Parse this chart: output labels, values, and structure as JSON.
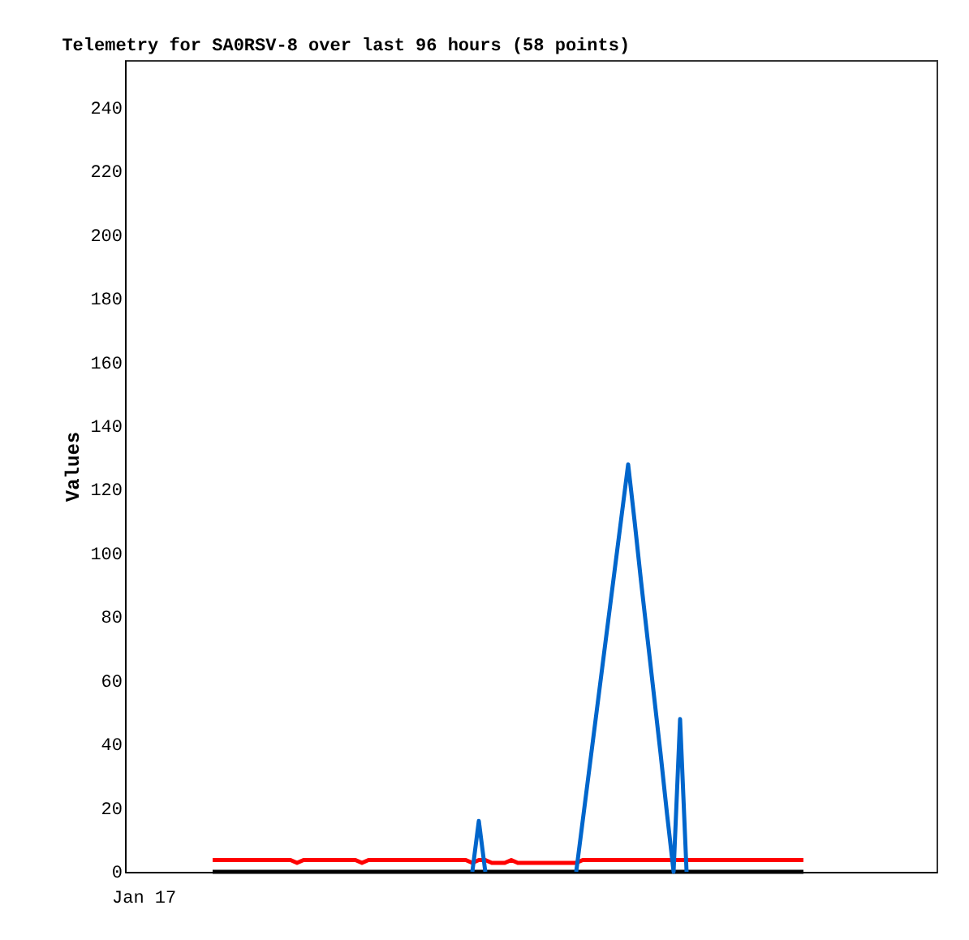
{
  "chart_data": {
    "type": "line",
    "title": "Telemetry for SA0RSV-8 over last 96 hours (58 points)",
    "ylabel": "Values",
    "annotations": [
      "Jan 17"
    ],
    "categories": [
      null,
      null,
      null,
      null,
      null,
      null,
      null,
      null,
      null,
      null,
      null,
      null,
      null,
      null,
      null,
      null,
      null,
      null,
      null,
      null,
      null,
      null,
      null,
      null,
      null,
      null,
      null,
      null,
      null,
      null,
      null,
      null,
      null,
      null,
      null,
      null,
      null,
      null,
      null,
      null,
      null,
      null,
      null,
      null,
      null,
      null,
      null,
      null,
      null,
      null,
      null,
      null,
      null,
      null,
      null,
      null,
      null,
      null,
      null,
      null,
      null,
      null,
      null,
      null,
      null,
      null,
      null,
      null,
      null,
      null,
      null,
      null,
      null,
      null,
      null,
      null,
      null,
      null,
      null,
      null,
      null,
      null,
      null,
      null,
      null,
      null,
      null,
      null,
      null,
      null,
      null,
      null,
      null,
      null,
      null,
      null,
      null,
      null,
      null,
      null,
      null,
      null,
      null,
      null,
      null,
      null,
      null,
      null,
      null,
      null,
      null,
      null,
      null,
      null,
      null,
      null,
      null,
      null,
      null,
      null,
      null,
      null,
      null,
      null,
      null
    ],
    "ylim": [
      0,
      255
    ],
    "yticks": [
      0,
      20,
      40,
      60,
      80,
      100,
      120,
      140,
      160,
      180,
      200,
      220,
      240
    ],
    "line_style": "solid",
    "series": [
      {
        "color": "#ff0000",
        "values": [
          null,
          null,
          null,
          null,
          null,
          null,
          null,
          null,
          null,
          null,
          null,
          null,
          null,
          3.7,
          3.7,
          3.7,
          3.7,
          3.7,
          3.7,
          3.7,
          3.7,
          3.7,
          3.7,
          3.7,
          3.7,
          3.7,
          2.8,
          3.7,
          3.7,
          3.7,
          3.7,
          3.7,
          3.7,
          3.7,
          3.7,
          3.7,
          2.8,
          3.7,
          3.7,
          3.7,
          3.7,
          3.7,
          3.7,
          3.7,
          3.7,
          3.7,
          3.7,
          3.7,
          3.7,
          3.7,
          3.7,
          3.7,
          3.7,
          2.8,
          3.7,
          3.7,
          2.8,
          2.8,
          2.8,
          3.7,
          2.8,
          2.8,
          2.8,
          2.8,
          2.8,
          2.8,
          2.8,
          2.8,
          2.8,
          2.8,
          3.7,
          3.7,
          3.7,
          3.7,
          3.7,
          3.7,
          3.7,
          3.7,
          3.7,
          3.7,
          3.7,
          3.7,
          3.7,
          3.7,
          3.7,
          3.7,
          3.7,
          3.7,
          3.7,
          3.7,
          3.7,
          3.7,
          3.7,
          3.7,
          3.7,
          3.7,
          3.7,
          3.7,
          3.7,
          3.7,
          3.7,
          3.7,
          3.7,
          3.7,
          3.7,
          null,
          null,
          null,
          null,
          null,
          null,
          null,
          null,
          null,
          null,
          null,
          null,
          null,
          null,
          null,
          null,
          null,
          null,
          null,
          null
        ]
      },
      {
        "color": "#000000",
        "values": [
          null,
          null,
          null,
          null,
          null,
          null,
          null,
          null,
          null,
          null,
          null,
          null,
          null,
          0,
          0,
          0,
          0,
          0,
          0,
          0,
          0,
          0,
          0,
          0,
          0,
          0,
          0,
          0,
          0,
          0,
          0,
          0,
          0,
          0,
          0,
          0,
          0,
          0,
          0,
          0,
          0,
          0,
          0,
          0,
          0,
          0,
          0,
          0,
          0,
          0,
          0,
          0,
          0,
          0,
          0,
          0,
          0,
          0,
          0,
          0,
          0,
          0,
          0,
          0,
          0,
          0,
          0,
          0,
          0,
          0,
          0,
          0,
          0,
          0,
          0,
          0,
          0,
          0,
          0,
          0,
          0,
          0,
          0,
          0,
          0,
          0,
          0,
          0,
          0,
          0,
          0,
          0,
          0,
          0,
          0,
          0,
          0,
          0,
          0,
          0,
          0,
          0,
          0,
          0,
          0,
          null,
          null,
          null,
          null,
          null,
          null,
          null,
          null,
          null,
          null,
          null,
          null,
          null,
          null,
          null,
          null,
          null,
          null,
          null,
          null
        ]
      },
      {
        "color": "#0066cc",
        "values": [
          null,
          null,
          null,
          null,
          null,
          null,
          null,
          null,
          null,
          null,
          null,
          null,
          null,
          null,
          null,
          null,
          null,
          null,
          null,
          null,
          null,
          null,
          null,
          null,
          null,
          null,
          null,
          null,
          null,
          null,
          null,
          null,
          null,
          null,
          null,
          null,
          null,
          null,
          null,
          null,
          null,
          null,
          null,
          null,
          null,
          null,
          null,
          null,
          null,
          null,
          null,
          null,
          null,
          0,
          16,
          0,
          null,
          null,
          null,
          null,
          null,
          null,
          null,
          null,
          null,
          null,
          null,
          null,
          null,
          0,
          16,
          32,
          48,
          64,
          80,
          96,
          112,
          128,
          110,
          91,
          73,
          55,
          37,
          18,
          0,
          48,
          0,
          null,
          null,
          null,
          null,
          null,
          null,
          null,
          null,
          null,
          null,
          null,
          null,
          null,
          null,
          null,
          null,
          null,
          null,
          null,
          null,
          null,
          null,
          null,
          null,
          null,
          null,
          null,
          null,
          null,
          null,
          null,
          null,
          null,
          null,
          null,
          null,
          null,
          null
        ]
      }
    ]
  }
}
